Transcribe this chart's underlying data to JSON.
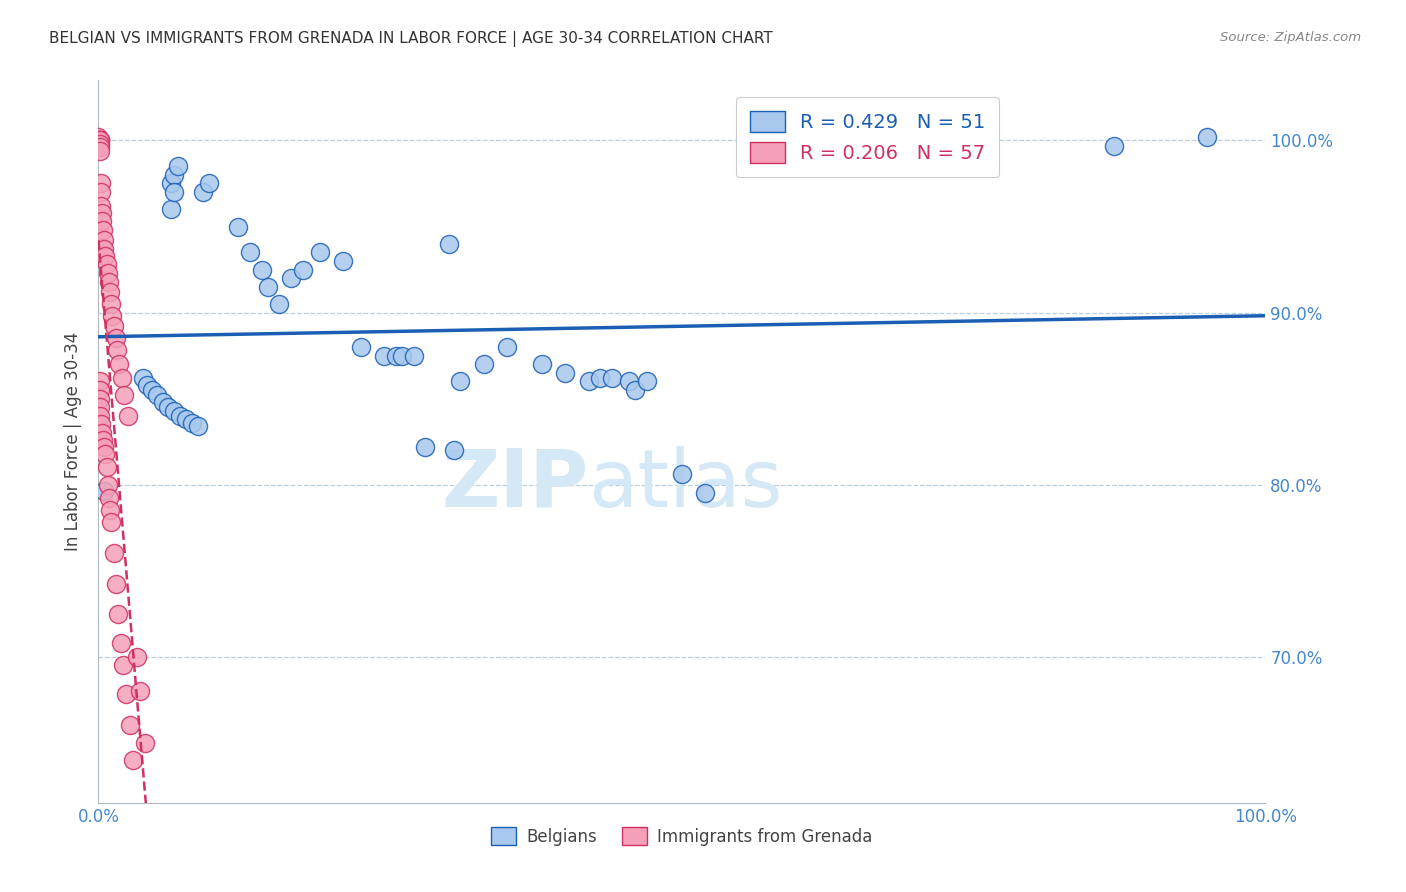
{
  "title": "BELGIAN VS IMMIGRANTS FROM GRENADA IN LABOR FORCE | AGE 30-34 CORRELATION CHART",
  "source": "Source: ZipAtlas.com",
  "ylabel": "In Labor Force | Age 30-34",
  "xlim": [
    0.0,
    1.0
  ],
  "ylim": [
    0.615,
    1.035
  ],
  "yticks": [
    0.7,
    0.8,
    0.9,
    1.0
  ],
  "ytick_labels": [
    "70.0%",
    "80.0%",
    "90.0%",
    "100.0%"
  ],
  "xticks": [
    0.0,
    0.2,
    0.4,
    0.6,
    0.8,
    1.0
  ],
  "xtick_labels": [
    "0.0%",
    "",
    "",
    "",
    "",
    "100.0%"
  ],
  "blue_R": 0.429,
  "blue_N": 51,
  "pink_R": 0.206,
  "pink_N": 57,
  "blue_color": "#a8c8ed",
  "pink_color": "#f4a0b8",
  "blue_line_color": "#1a5fb4",
  "pink_line_color": "#d03060",
  "grid_color": "#b8cfe0",
  "axis_color": "#b0b8c0",
  "title_color": "#333333",
  "right_label_color": "#4488cc",
  "watermark_color": "#d5e8f5",
  "blue_x": [
    0.005,
    0.062,
    0.065,
    0.068,
    0.062,
    0.065,
    0.09,
    0.095,
    0.12,
    0.13,
    0.14,
    0.145,
    0.155,
    0.165,
    0.175,
    0.19,
    0.21,
    0.225,
    0.245,
    0.255,
    0.26,
    0.27,
    0.3,
    0.31,
    0.33,
    0.35,
    0.38,
    0.4,
    0.42,
    0.43,
    0.44,
    0.455,
    0.46,
    0.47,
    0.038,
    0.042,
    0.046,
    0.05,
    0.055,
    0.06,
    0.065,
    0.07,
    0.075,
    0.08,
    0.085,
    0.28,
    0.305,
    0.5,
    0.52,
    0.87,
    0.95
  ],
  "blue_y": [
    0.796,
    0.975,
    0.98,
    0.985,
    0.96,
    0.97,
    0.97,
    0.975,
    0.95,
    0.935,
    0.925,
    0.915,
    0.905,
    0.92,
    0.925,
    0.935,
    0.93,
    0.88,
    0.875,
    0.875,
    0.875,
    0.875,
    0.94,
    0.86,
    0.87,
    0.88,
    0.87,
    0.865,
    0.86,
    0.862,
    0.862,
    0.86,
    0.855,
    0.86,
    0.862,
    0.858,
    0.855,
    0.852,
    0.848,
    0.845,
    0.843,
    0.84,
    0.838,
    0.836,
    0.834,
    0.822,
    0.82,
    0.806,
    0.795,
    0.997,
    1.002
  ],
  "pink_x": [
    0.0,
    0.0,
    0.0,
    0.001,
    0.001,
    0.001,
    0.001,
    0.001,
    0.001,
    0.002,
    0.002,
    0.002,
    0.003,
    0.003,
    0.004,
    0.005,
    0.005,
    0.006,
    0.007,
    0.008,
    0.009,
    0.01,
    0.011,
    0.012,
    0.013,
    0.015,
    0.016,
    0.018,
    0.02,
    0.022,
    0.025,
    0.001,
    0.001,
    0.001,
    0.001,
    0.001,
    0.002,
    0.003,
    0.004,
    0.005,
    0.006,
    0.007,
    0.008,
    0.009,
    0.01,
    0.011,
    0.013,
    0.015,
    0.017,
    0.019,
    0.021,
    0.024,
    0.027,
    0.03,
    0.033,
    0.036,
    0.04
  ],
  "pink_y": [
    1.002,
    1.0,
    0.998,
    1.0,
    1.0,
    1.0,
    0.998,
    0.996,
    0.994,
    0.975,
    0.97,
    0.962,
    0.958,
    0.953,
    0.948,
    0.942,
    0.937,
    0.933,
    0.928,
    0.923,
    0.918,
    0.912,
    0.905,
    0.898,
    0.892,
    0.885,
    0.878,
    0.87,
    0.862,
    0.852,
    0.84,
    0.86,
    0.855,
    0.85,
    0.845,
    0.84,
    0.835,
    0.83,
    0.826,
    0.822,
    0.818,
    0.81,
    0.8,
    0.792,
    0.785,
    0.778,
    0.76,
    0.742,
    0.725,
    0.708,
    0.695,
    0.678,
    0.66,
    0.64,
    0.7,
    0.68,
    0.65
  ]
}
